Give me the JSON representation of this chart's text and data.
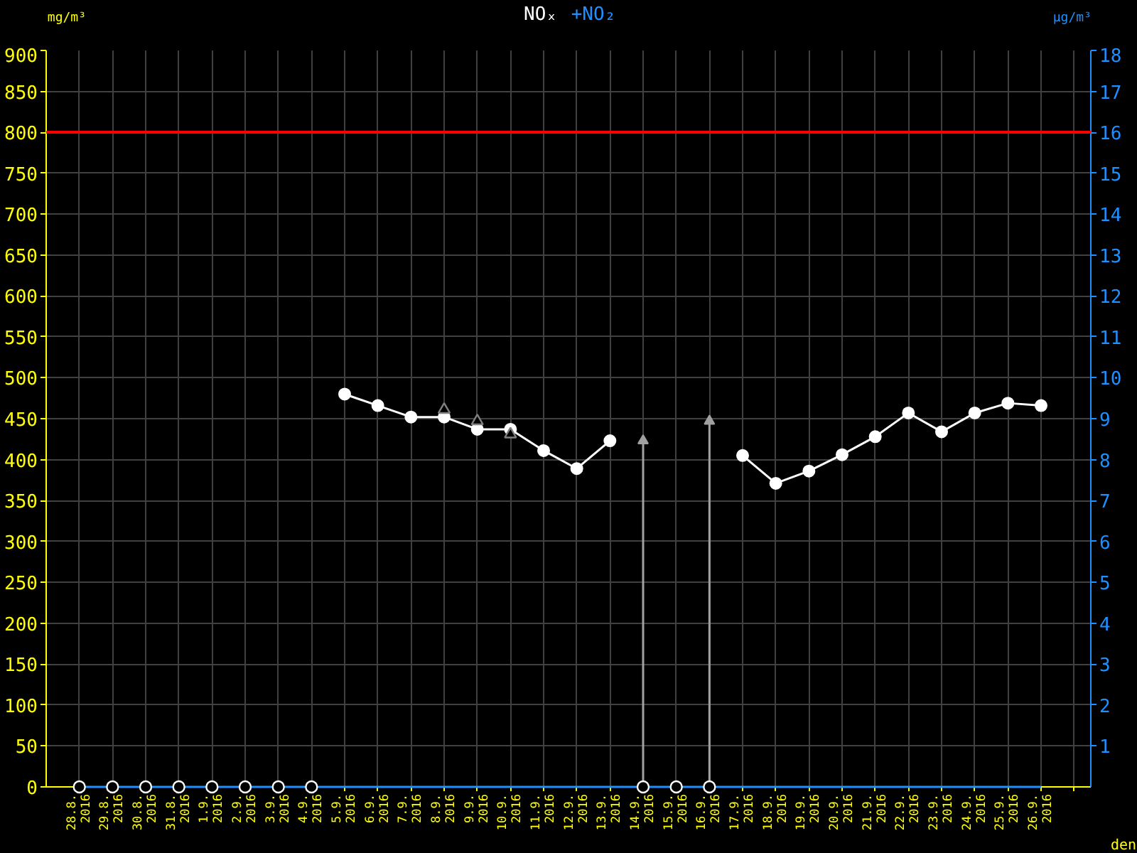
{
  "chart_data": {
    "type": "line",
    "categories": [
      "28.8. 2016",
      "29.8. 2016",
      "30.8. 2016",
      "31.8. 2016",
      "1.9. 2016",
      "2.9. 2016",
      "3.9. 2016",
      "4.9. 2016",
      "5.9. 2016",
      "6.9. 2016",
      "7.9. 2016",
      "8.9. 2016",
      "9.9. 2016",
      "10.9. 2016",
      "11.9. 2016",
      "12.9. 2016",
      "13.9. 2016",
      "14.9. 2016",
      "15.9. 2016",
      "16.9. 2016",
      "17.9. 2016",
      "18.9. 2016",
      "19.9. 2016",
      "20.9. 2016",
      "21.9. 2016",
      "22.9. 2016",
      "23.9. 2016",
      "24.9. 2016",
      "25.9. 2016",
      "26.9. 2016",
      null
    ],
    "series": [
      {
        "name": "NOₓ",
        "color": "#ffffff",
        "marker": "circle",
        "values": [
          null,
          null,
          null,
          null,
          null,
          null,
          null,
          null,
          480,
          466,
          452,
          452,
          437,
          437,
          411,
          389,
          423,
          null,
          null,
          null,
          405,
          371,
          386,
          406,
          428,
          457,
          434,
          457,
          469,
          466,
          null
        ]
      },
      {
        "name": "+NO₂",
        "axis": "y2",
        "color": "#1e90ff",
        "marker": "none",
        "values": [
          0,
          0,
          0,
          0,
          0,
          0,
          0,
          0,
          0,
          0,
          0,
          0,
          0,
          0,
          0,
          0,
          0,
          0,
          0,
          0,
          0,
          0,
          0,
          0,
          0,
          0,
          0,
          0,
          0,
          0,
          null
        ]
      },
      {
        "type": "scatter",
        "color": "#ffffff",
        "marker": "circle",
        "values": [
          0,
          0,
          0,
          0,
          0,
          0,
          0,
          0,
          null,
          null,
          null,
          null,
          null,
          null,
          null,
          null,
          null,
          0,
          0,
          0,
          null,
          null,
          null,
          null,
          null,
          null,
          null,
          null,
          null,
          null,
          null
        ]
      },
      {
        "type": "lollipop",
        "color": "#a0a0a0",
        "marker": "triangle",
        "values": [
          null,
          null,
          null,
          null,
          null,
          null,
          null,
          null,
          null,
          null,
          null,
          null,
          null,
          null,
          null,
          null,
          null,
          423,
          null,
          447,
          null,
          null,
          null,
          null,
          null,
          null,
          null,
          null,
          null,
          null,
          null
        ]
      },
      {
        "type": "scatter",
        "color": "#808080",
        "marker": "triangle",
        "values": [
          null,
          null,
          null,
          null,
          null,
          null,
          null,
          null,
          null,
          null,
          null,
          461,
          447,
          431,
          null,
          null,
          null,
          null,
          null,
          null,
          null,
          null,
          null,
          null,
          null,
          null,
          null,
          null,
          null,
          null,
          null
        ]
      }
    ],
    "ylim": [
      0,
      900
    ],
    "yticks": [
      0,
      50,
      100,
      150,
      200,
      250,
      300,
      350,
      400,
      450,
      500,
      550,
      600,
      650,
      700,
      750,
      800,
      850,
      900
    ],
    "y2lim": [
      0,
      18
    ],
    "y2ticks": [
      1,
      2,
      3,
      4,
      5,
      6,
      7,
      8,
      9,
      10,
      11,
      12,
      13,
      14,
      15,
      16,
      17,
      18
    ],
    "ylabel": "mg/m³",
    "y2label": "µg/m³",
    "xlabel": "den",
    "ref_lines": [
      {
        "axis": "y",
        "value": 800,
        "color": "#ff0000"
      }
    ],
    "grid": true,
    "legend": "top",
    "line_style": "solid"
  }
}
